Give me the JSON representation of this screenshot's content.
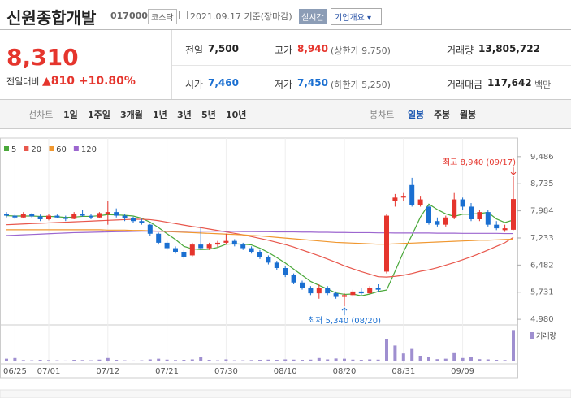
{
  "header": {
    "name": "신원종합개발",
    "code": "017000",
    "market": "코스닥",
    "date": "2021.09.17 기준(장마감)",
    "realtime": "실시간",
    "overview": "기업개요"
  },
  "quote": {
    "price": "8,310",
    "change_label": "전일대비",
    "change": "810",
    "change_pct": "+10.80%",
    "items": [
      {
        "label": "전일",
        "value": "7,500"
      },
      {
        "label": "고가",
        "value": "8,940",
        "note": "(상한가 9,750)"
      },
      {
        "label": "거래량",
        "value": "13,805,722"
      },
      {
        "label": "시가",
        "value": "7,460"
      },
      {
        "label": "저가",
        "value": "7,450",
        "note": "(하한가 5,250)"
      },
      {
        "label": "거래대금",
        "value": "117,642",
        "note": "백만"
      }
    ]
  },
  "tabs": {
    "line_label": "선차트",
    "line": [
      "1일",
      "1주일",
      "3개월",
      "1년",
      "3년",
      "5년",
      "10년"
    ],
    "candle_label": "봉차트",
    "candle": [
      "일봉",
      "주봉",
      "월봉"
    ]
  },
  "chart_data": {
    "type": "candlestick",
    "categories": [
      null,
      "06/25",
      null,
      null,
      null,
      "07/01",
      null,
      null,
      null,
      null,
      null,
      null,
      "07/12",
      null,
      null,
      null,
      null,
      null,
      null,
      "07/21",
      null,
      null,
      null,
      null,
      null,
      null,
      "07/30",
      null,
      null,
      null,
      null,
      null,
      null,
      "08/10",
      null,
      null,
      null,
      null,
      null,
      null,
      "08/20",
      null,
      null,
      null,
      null,
      null,
      null,
      "08/31",
      null,
      null,
      null,
      null,
      null,
      null,
      "09/09",
      null,
      null,
      null,
      null,
      null,
      null
    ],
    "open": [
      7900,
      7850,
      7800,
      7900,
      7830,
      7750,
      7850,
      7800,
      7760,
      7900,
      7850,
      7800,
      7900,
      7950,
      7850,
      7780,
      7700,
      7600,
      7350,
      7100,
      6950,
      6850,
      6750,
      7050,
      6950,
      7050,
      7100,
      7150,
      7050,
      6950,
      6850,
      6700,
      6550,
      6400,
      6200,
      6000,
      5850,
      5700,
      5850,
      5700,
      5600,
      5650,
      5750,
      5700,
      5850,
      6300,
      8250,
      8350,
      8700,
      8150,
      8100,
      7700,
      7600,
      7800,
      8300,
      8100,
      7750,
      7950,
      7600,
      7450,
      7460
    ],
    "high": [
      7950,
      7900,
      7950,
      7920,
      7880,
      7900,
      7880,
      7850,
      7950,
      8000,
      7900,
      7950,
      8250,
      8050,
      7900,
      7820,
      7760,
      7620,
      7380,
      7150,
      7000,
      6900,
      7100,
      7550,
      7100,
      7150,
      7350,
      7200,
      7100,
      7000,
      6900,
      6750,
      6600,
      6450,
      6250,
      6050,
      5900,
      5950,
      5900,
      5750,
      5700,
      5800,
      5850,
      5900,
      5950,
      7900,
      8450,
      8500,
      8900,
      8400,
      8150,
      7800,
      7850,
      8500,
      8350,
      8200,
      8000,
      8000,
      7700,
      7600,
      8940
    ],
    "low": [
      7800,
      7750,
      7780,
      7800,
      7700,
      7720,
      7780,
      7700,
      7750,
      7820,
      7750,
      7780,
      7600,
      7800,
      7700,
      7650,
      7600,
      7300,
      7050,
      6900,
      6800,
      6650,
      6720,
      6900,
      6900,
      6980,
      7050,
      7000,
      6900,
      6800,
      6650,
      6500,
      6350,
      6150,
      5950,
      5800,
      5650,
      5550,
      5650,
      5550,
      5340,
      5600,
      5650,
      5680,
      5750,
      6250,
      8100,
      8250,
      8100,
      8100,
      7600,
      7550,
      7550,
      7750,
      8000,
      7700,
      7700,
      7550,
      7450,
      7400,
      7450
    ],
    "close": [
      7850,
      7800,
      7900,
      7830,
      7750,
      7850,
      7800,
      7760,
      7900,
      7850,
      7800,
      7920,
      7950,
      7850,
      7780,
      7700,
      7650,
      7350,
      7100,
      6950,
      6850,
      6700,
      7050,
      6950,
      7050,
      7100,
      7150,
      7050,
      6950,
      6850,
      6700,
      6550,
      6400,
      6200,
      6000,
      5850,
      5700,
      5850,
      5700,
      5600,
      5650,
      5750,
      5700,
      5850,
      5800,
      7850,
      8350,
      8400,
      8150,
      8300,
      7650,
      7600,
      7800,
      8300,
      8100,
      7750,
      7950,
      7600,
      7500,
      7500,
      8310
    ],
    "up_color": "#e5352d",
    "down_color": "#1a6fd1",
    "ylim": [
      4870,
      9820
    ],
    "yticks": [
      {
        "value": 4980,
        "label": "4,980"
      },
      {
        "value": 5731,
        "label": "5,731"
      },
      {
        "value": 6482,
        "label": "6,482"
      },
      {
        "value": 7233,
        "label": "7,233"
      },
      {
        "value": 7984,
        "label": "7,984"
      },
      {
        "value": 8735,
        "label": "8,735"
      },
      {
        "value": 9486,
        "label": "9,486"
      }
    ],
    "series": [
      {
        "name": "5",
        "color": "#4aa83a",
        "values": [
          7850,
          7840,
          7840,
          7840,
          7830,
          7830,
          7820,
          7800,
          7810,
          7830,
          7830,
          7850,
          7880,
          7870,
          7860,
          7840,
          7780,
          7670,
          7520,
          7350,
          7190,
          7000,
          6930,
          6910,
          6920,
          6970,
          7060,
          7070,
          7060,
          7040,
          6950,
          6830,
          6690,
          6540,
          6370,
          6200,
          6030,
          5920,
          5820,
          5710,
          5670,
          5680,
          5630,
          5680,
          5750,
          5790,
          6310,
          6850,
          7310,
          7810,
          8170,
          8020,
          7900,
          7830,
          7890,
          7890,
          7910,
          7940,
          7760,
          7660,
          7730
        ]
      },
      {
        "name": "20",
        "color": "#e8574c",
        "values": [
          7600,
          7610,
          7620,
          7630,
          7640,
          7650,
          7660,
          7670,
          7680,
          7690,
          7700,
          7710,
          7720,
          7730,
          7740,
          7750,
          7750,
          7740,
          7710,
          7670,
          7630,
          7590,
          7550,
          7520,
          7480,
          7440,
          7400,
          7360,
          7320,
          7270,
          7220,
          7170,
          7110,
          7050,
          6980,
          6900,
          6820,
          6740,
          6650,
          6560,
          6460,
          6380,
          6300,
          6230,
          6160,
          6150,
          6170,
          6200,
          6250,
          6310,
          6350,
          6410,
          6480,
          6550,
          6630,
          6710,
          6800,
          6900,
          7000,
          7100,
          7250
        ]
      },
      {
        "name": "60",
        "color": "#f0972f",
        "values": [
          7460,
          7460,
          7460,
          7460,
          7460,
          7460,
          7460,
          7460,
          7460,
          7460,
          7460,
          7460,
          7450,
          7450,
          7450,
          7440,
          7440,
          7430,
          7420,
          7410,
          7400,
          7390,
          7380,
          7370,
          7360,
          7350,
          7340,
          7330,
          7320,
          7300,
          7290,
          7270,
          7250,
          7230,
          7210,
          7190,
          7170,
          7150,
          7130,
          7110,
          7100,
          7090,
          7080,
          7070,
          7060,
          7060,
          7070,
          7080,
          7090,
          7100,
          7110,
          7120,
          7130,
          7140,
          7150,
          7160,
          7170,
          7170,
          7180,
          7190,
          7200
        ]
      },
      {
        "name": "120",
        "color": "#9c66cf",
        "values": [
          7300,
          7310,
          7320,
          7330,
          7340,
          7350,
          7360,
          7370,
          7380,
          7385,
          7390,
          7395,
          7400,
          7405,
          7410,
          7415,
          7420,
          7420,
          7420,
          7420,
          7420,
          7420,
          7420,
          7420,
          7420,
          7420,
          7415,
          7415,
          7410,
          7410,
          7405,
          7405,
          7400,
          7400,
          7400,
          7395,
          7395,
          7390,
          7390,
          7385,
          7385,
          7380,
          7380,
          7380,
          7375,
          7375,
          7370,
          7370,
          7370,
          7370,
          7370,
          7365,
          7365,
          7365,
          7360,
          7360,
          7360,
          7360,
          7360,
          7355,
          7355
        ]
      }
    ],
    "volume": {
      "name": "거래량",
      "color": "#9f8fd0",
      "ylim": [
        0,
        15000000
      ],
      "values": [
        1200000,
        1500000,
        600000,
        500000,
        700000,
        600000,
        500000,
        400000,
        700000,
        600000,
        500000,
        800000,
        1500000,
        700000,
        500000,
        400000,
        500000,
        900000,
        1200000,
        800000,
        600000,
        700000,
        900000,
        2000000,
        700000,
        500000,
        900000,
        500000,
        500000,
        600000,
        700000,
        800000,
        700000,
        900000,
        800000,
        700000,
        800000,
        1500000,
        900000,
        1300000,
        1200000,
        800000,
        700000,
        900000,
        800000,
        10000000,
        7000000,
        3500000,
        5500000,
        2500000,
        1800000,
        1000000,
        1200000,
        4000000,
        1500000,
        2000000,
        1000000,
        900000,
        700000,
        600000,
        13805722
      ]
    },
    "high_label": "최고 8,940 (09/17)",
    "low_label": "최저 5,340 (08/20)"
  }
}
